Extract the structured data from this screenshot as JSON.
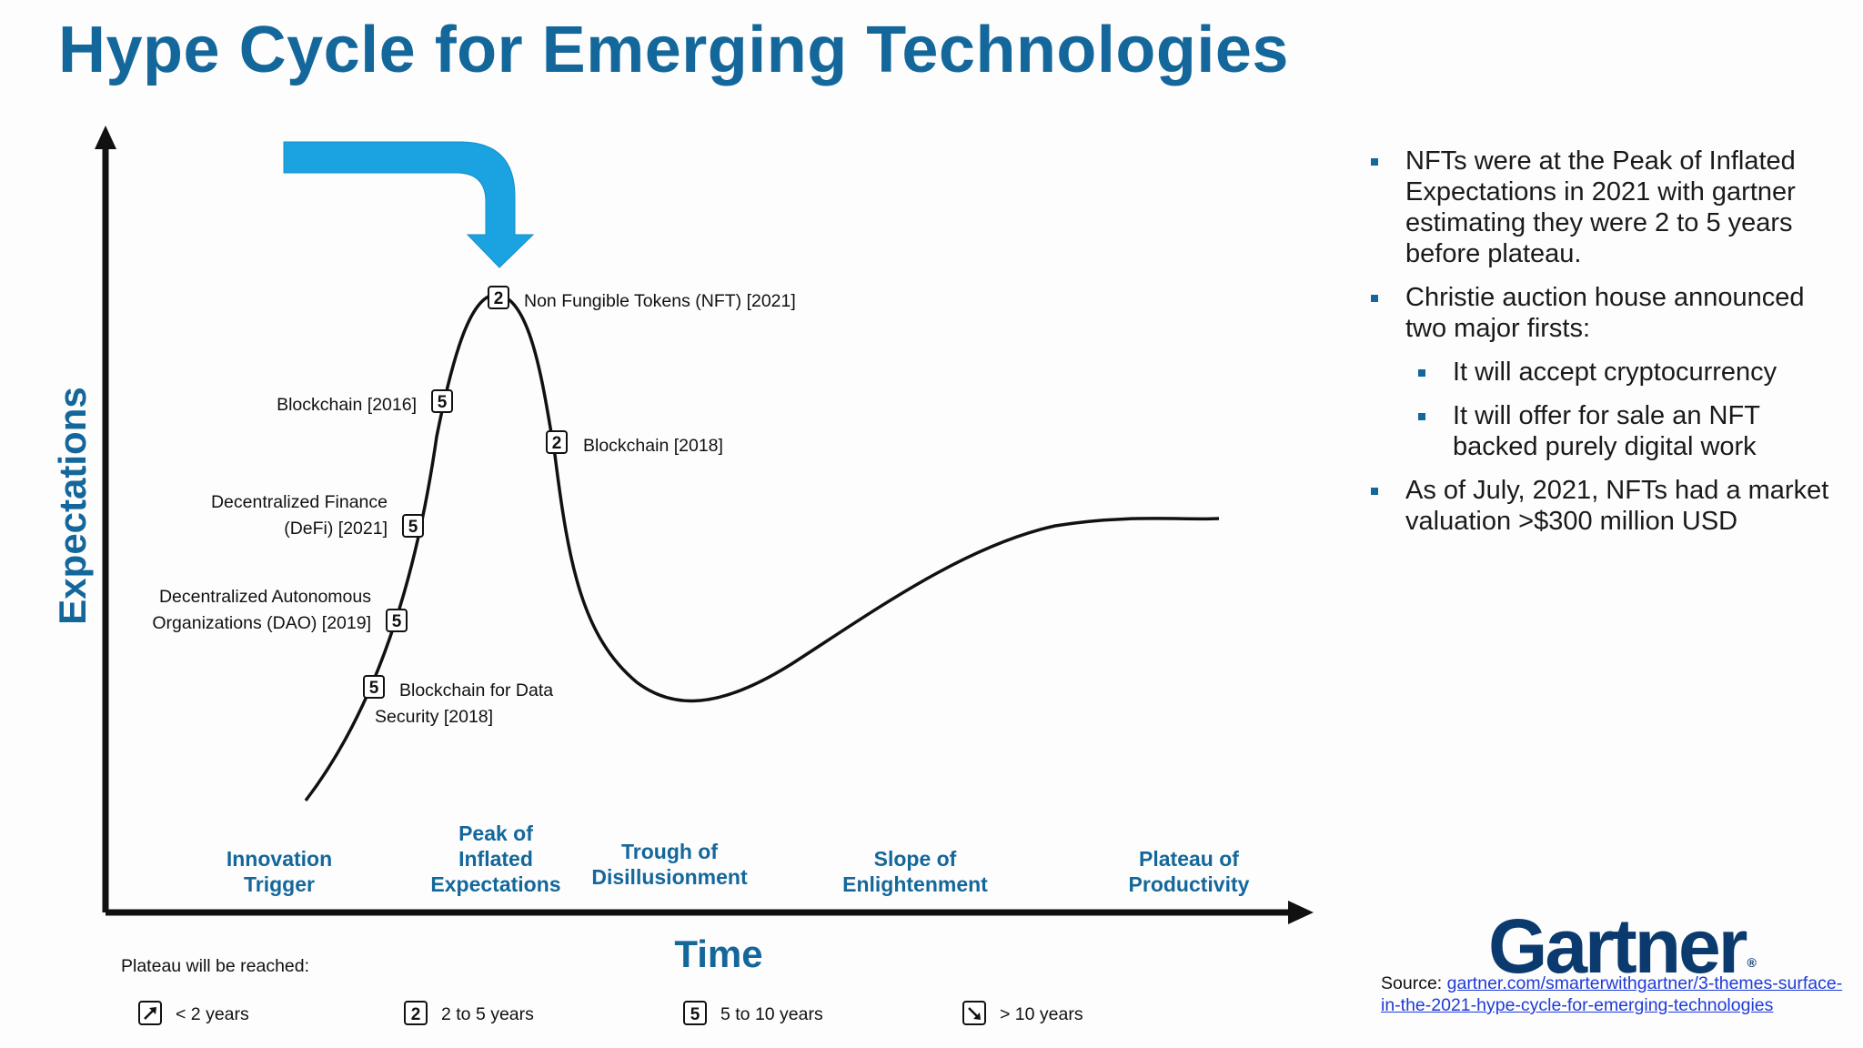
{
  "title": "Hype Cycle for Emerging Technologies",
  "diagram": {
    "y_axis_label": "Expectations",
    "x_axis_label": "Time",
    "phases": [
      [
        "Innovation",
        "Trigger"
      ],
      [
        "Peak of",
        "Inflated",
        "Expectations"
      ],
      [
        "Trough of",
        "Disillusionment"
      ],
      [
        "Slope of",
        "Enlightenment"
      ],
      [
        "Plateau of",
        "Productivity"
      ]
    ],
    "technologies": [
      {
        "lines": [
          "Non Fungible Tokens (NFT) [2021]"
        ],
        "plateau": "2"
      },
      {
        "lines": [
          "Blockchain [2016]"
        ],
        "plateau": "5"
      },
      {
        "lines": [
          "Blockchain [2018]"
        ],
        "plateau": "2"
      },
      {
        "lines": [
          "Decentralized Finance",
          "(DeFi) [2021]"
        ],
        "plateau": "5"
      },
      {
        "lines": [
          "Decentralized Autonomous",
          "Organizations (DAO) [2019]"
        ],
        "plateau": "5"
      },
      {
        "lines": [
          "Blockchain for Data",
          "Security [2018]"
        ],
        "plateau": "5"
      }
    ],
    "legend": {
      "title": "Plateau will be reached:",
      "items": [
        {
          "icon": "arrow-up-right-icon",
          "label": "< 2 years"
        },
        {
          "symbol": "2",
          "label": "2 to 5 years"
        },
        {
          "symbol": "5",
          "label": "5 to 10 years"
        },
        {
          "icon": "arrow-down-right-icon",
          "label": "> 10 years"
        }
      ]
    },
    "colors": {
      "accent": "#14679a",
      "arrow": "#1aa3e0",
      "curve": "#111111"
    }
  },
  "bullets": [
    {
      "level": 1,
      "text": "NFTs were at the Peak of Inflated Expectations in 2021 with gartner estimating they were 2 to 5 years before plateau."
    },
    {
      "level": 1,
      "text": "Christie auction house announced two major firsts:"
    },
    {
      "level": 2,
      "text": "It will accept cryptocurrency"
    },
    {
      "level": 2,
      "text": "It will offer for sale an NFT backed purely digital work"
    },
    {
      "level": 1,
      "text": "As of July, 2021, NFTs had a market valuation >$300 million USD"
    }
  ],
  "logo": {
    "text": "Gartner",
    "registered": "®"
  },
  "source": {
    "prefix": "Source: ",
    "link_text": "gartner.com/smarterwithgartner/3-themes-surface-in-the-2021-hype-cycle-for-emerging-technologies"
  }
}
